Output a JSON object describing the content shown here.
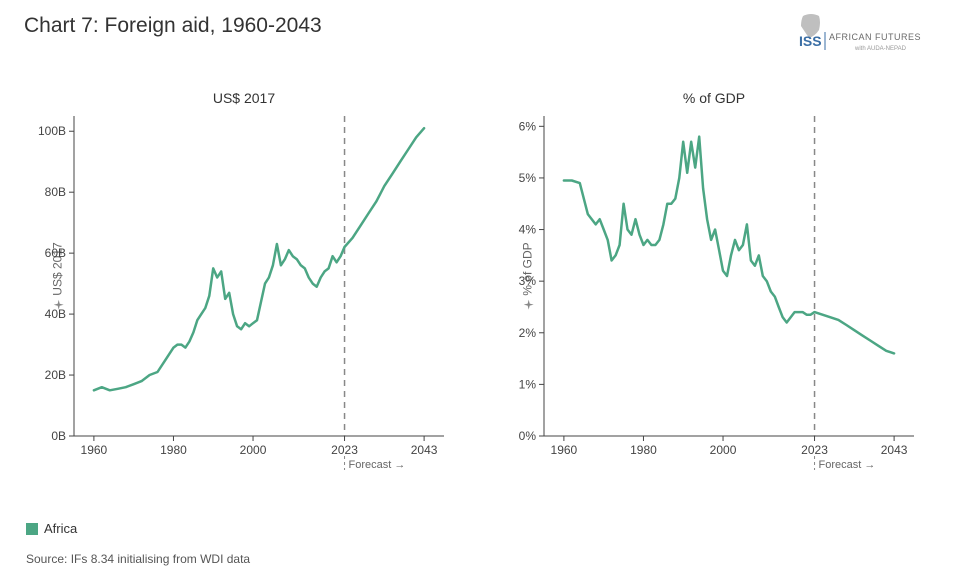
{
  "title": "Chart 7: Foreign aid, 1960-2043",
  "logo": {
    "iss_text": "ISS",
    "brand_text": "AFRICAN FUTURES",
    "sub_text": "AUDA-NEPAD",
    "color_iss": "#3a6ea5",
    "color_brand": "#6a6a6a",
    "color_africa": "#bfbfbf"
  },
  "legend": {
    "swatch_color": "#4ca684",
    "label": "Africa"
  },
  "source": "Source: IFs 8.34 initialising from WDI data",
  "forecast_marker": {
    "year": 2023,
    "label": "Forecast →",
    "line_color": "#888888",
    "dash": "6,5"
  },
  "series_color": "#4ca684",
  "line_width": 2.5,
  "axis_color": "#444444",
  "tick_font_size": 12,
  "grid_color": "#e0e0e0",
  "panel_left": {
    "title": "US$ 2017",
    "y_axis_label": "US$ 2017",
    "x_range": [
      1955,
      2048
    ],
    "y_range": [
      0,
      105
    ],
    "x_ticks": [
      {
        "v": 1960,
        "l": "1960"
      },
      {
        "v": 1980,
        "l": "1980"
      },
      {
        "v": 2000,
        "l": "2000"
      },
      {
        "v": 2023,
        "l": "2023"
      },
      {
        "v": 2043,
        "l": "2043"
      }
    ],
    "y_ticks": [
      {
        "v": 0,
        "l": "0B"
      },
      {
        "v": 20,
        "l": "20B"
      },
      {
        "v": 40,
        "l": "40B"
      },
      {
        "v": 60,
        "l": "60B"
      },
      {
        "v": 80,
        "l": "80B"
      },
      {
        "v": 100,
        "l": "100B"
      }
    ],
    "data": [
      {
        "x": 1960,
        "y": 15
      },
      {
        "x": 1962,
        "y": 16
      },
      {
        "x": 1964,
        "y": 15
      },
      {
        "x": 1966,
        "y": 15.5
      },
      {
        "x": 1968,
        "y": 16
      },
      {
        "x": 1970,
        "y": 17
      },
      {
        "x": 1972,
        "y": 18
      },
      {
        "x": 1974,
        "y": 20
      },
      {
        "x": 1976,
        "y": 21
      },
      {
        "x": 1978,
        "y": 25
      },
      {
        "x": 1980,
        "y": 29
      },
      {
        "x": 1981,
        "y": 30
      },
      {
        "x": 1982,
        "y": 30
      },
      {
        "x": 1983,
        "y": 29
      },
      {
        "x": 1984,
        "y": 31
      },
      {
        "x": 1985,
        "y": 34
      },
      {
        "x": 1986,
        "y": 38
      },
      {
        "x": 1987,
        "y": 40
      },
      {
        "x": 1988,
        "y": 42
      },
      {
        "x": 1989,
        "y": 46
      },
      {
        "x": 1990,
        "y": 55
      },
      {
        "x": 1991,
        "y": 52
      },
      {
        "x": 1992,
        "y": 54
      },
      {
        "x": 1993,
        "y": 45
      },
      {
        "x": 1994,
        "y": 47
      },
      {
        "x": 1995,
        "y": 40
      },
      {
        "x": 1996,
        "y": 36
      },
      {
        "x": 1997,
        "y": 35
      },
      {
        "x": 1998,
        "y": 37
      },
      {
        "x": 1999,
        "y": 36
      },
      {
        "x": 2000,
        "y": 37
      },
      {
        "x": 2001,
        "y": 38
      },
      {
        "x": 2002,
        "y": 44
      },
      {
        "x": 2003,
        "y": 50
      },
      {
        "x": 2004,
        "y": 52
      },
      {
        "x": 2005,
        "y": 56
      },
      {
        "x": 2006,
        "y": 63
      },
      {
        "x": 2007,
        "y": 56
      },
      {
        "x": 2008,
        "y": 58
      },
      {
        "x": 2009,
        "y": 61
      },
      {
        "x": 2010,
        "y": 59
      },
      {
        "x": 2011,
        "y": 58
      },
      {
        "x": 2012,
        "y": 56
      },
      {
        "x": 2013,
        "y": 55
      },
      {
        "x": 2014,
        "y": 52
      },
      {
        "x": 2015,
        "y": 50
      },
      {
        "x": 2016,
        "y": 49
      },
      {
        "x": 2017,
        "y": 52
      },
      {
        "x": 2018,
        "y": 54
      },
      {
        "x": 2019,
        "y": 55
      },
      {
        "x": 2020,
        "y": 59
      },
      {
        "x": 2021,
        "y": 57
      },
      {
        "x": 2022,
        "y": 59
      },
      {
        "x": 2023,
        "y": 62
      },
      {
        "x": 2025,
        "y": 65
      },
      {
        "x": 2027,
        "y": 69
      },
      {
        "x": 2029,
        "y": 73
      },
      {
        "x": 2031,
        "y": 77
      },
      {
        "x": 2033,
        "y": 82
      },
      {
        "x": 2035,
        "y": 86
      },
      {
        "x": 2037,
        "y": 90
      },
      {
        "x": 2039,
        "y": 94
      },
      {
        "x": 2041,
        "y": 98
      },
      {
        "x": 2043,
        "y": 101
      }
    ]
  },
  "panel_right": {
    "title": "% of GDP",
    "y_axis_label": "% of GDP",
    "x_range": [
      1955,
      2048
    ],
    "y_range": [
      0,
      6.2
    ],
    "x_ticks": [
      {
        "v": 1960,
        "l": "1960"
      },
      {
        "v": 1980,
        "l": "1980"
      },
      {
        "v": 2000,
        "l": "2000"
      },
      {
        "v": 2023,
        "l": "2023"
      },
      {
        "v": 2043,
        "l": "2043"
      }
    ],
    "y_ticks": [
      {
        "v": 0,
        "l": "0%"
      },
      {
        "v": 1,
        "l": "1%"
      },
      {
        "v": 2,
        "l": "2%"
      },
      {
        "v": 3,
        "l": "3%"
      },
      {
        "v": 4,
        "l": "4%"
      },
      {
        "v": 5,
        "l": "5%"
      },
      {
        "v": 6,
        "l": "6%"
      }
    ],
    "data": [
      {
        "x": 1960,
        "y": 4.95
      },
      {
        "x": 1962,
        "y": 4.95
      },
      {
        "x": 1964,
        "y": 4.9
      },
      {
        "x": 1966,
        "y": 4.3
      },
      {
        "x": 1968,
        "y": 4.1
      },
      {
        "x": 1969,
        "y": 4.2
      },
      {
        "x": 1970,
        "y": 4.0
      },
      {
        "x": 1971,
        "y": 3.8
      },
      {
        "x": 1972,
        "y": 3.4
      },
      {
        "x": 1973,
        "y": 3.5
      },
      {
        "x": 1974,
        "y": 3.7
      },
      {
        "x": 1975,
        "y": 4.5
      },
      {
        "x": 1976,
        "y": 4.0
      },
      {
        "x": 1977,
        "y": 3.9
      },
      {
        "x": 1978,
        "y": 4.2
      },
      {
        "x": 1979,
        "y": 3.9
      },
      {
        "x": 1980,
        "y": 3.7
      },
      {
        "x": 1981,
        "y": 3.8
      },
      {
        "x": 1982,
        "y": 3.7
      },
      {
        "x": 1983,
        "y": 3.7
      },
      {
        "x": 1984,
        "y": 3.8
      },
      {
        "x": 1985,
        "y": 4.1
      },
      {
        "x": 1986,
        "y": 4.5
      },
      {
        "x": 1987,
        "y": 4.5
      },
      {
        "x": 1988,
        "y": 4.6
      },
      {
        "x": 1989,
        "y": 5.0
      },
      {
        "x": 1990,
        "y": 5.7
      },
      {
        "x": 1991,
        "y": 5.1
      },
      {
        "x": 1992,
        "y": 5.7
      },
      {
        "x": 1993,
        "y": 5.2
      },
      {
        "x": 1994,
        "y": 5.8
      },
      {
        "x": 1995,
        "y": 4.8
      },
      {
        "x": 1996,
        "y": 4.2
      },
      {
        "x": 1997,
        "y": 3.8
      },
      {
        "x": 1998,
        "y": 4.0
      },
      {
        "x": 1999,
        "y": 3.6
      },
      {
        "x": 2000,
        "y": 3.2
      },
      {
        "x": 2001,
        "y": 3.1
      },
      {
        "x": 2002,
        "y": 3.5
      },
      {
        "x": 2003,
        "y": 3.8
      },
      {
        "x": 2004,
        "y": 3.6
      },
      {
        "x": 2005,
        "y": 3.7
      },
      {
        "x": 2006,
        "y": 4.1
      },
      {
        "x": 2007,
        "y": 3.4
      },
      {
        "x": 2008,
        "y": 3.3
      },
      {
        "x": 2009,
        "y": 3.5
      },
      {
        "x": 2010,
        "y": 3.1
      },
      {
        "x": 2011,
        "y": 3.0
      },
      {
        "x": 2012,
        "y": 2.8
      },
      {
        "x": 2013,
        "y": 2.7
      },
      {
        "x": 2014,
        "y": 2.5
      },
      {
        "x": 2015,
        "y": 2.3
      },
      {
        "x": 2016,
        "y": 2.2
      },
      {
        "x": 2017,
        "y": 2.3
      },
      {
        "x": 2018,
        "y": 2.4
      },
      {
        "x": 2019,
        "y": 2.4
      },
      {
        "x": 2020,
        "y": 2.4
      },
      {
        "x": 2021,
        "y": 2.35
      },
      {
        "x": 2022,
        "y": 2.35
      },
      {
        "x": 2023,
        "y": 2.4
      },
      {
        "x": 2025,
        "y": 2.35
      },
      {
        "x": 2027,
        "y": 2.3
      },
      {
        "x": 2029,
        "y": 2.25
      },
      {
        "x": 2031,
        "y": 2.15
      },
      {
        "x": 2033,
        "y": 2.05
      },
      {
        "x": 2035,
        "y": 1.95
      },
      {
        "x": 2037,
        "y": 1.85
      },
      {
        "x": 2039,
        "y": 1.75
      },
      {
        "x": 2041,
        "y": 1.65
      },
      {
        "x": 2043,
        "y": 1.6
      }
    ]
  }
}
